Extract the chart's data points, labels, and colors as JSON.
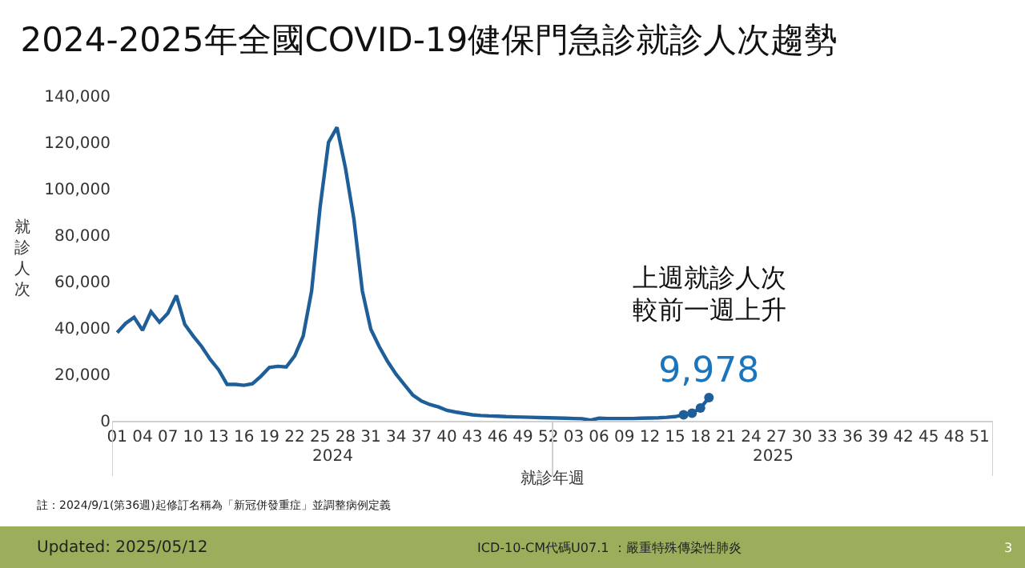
{
  "chart_data": {
    "type": "line",
    "title": "2024-2025年全國COVID-19健保門急診就診人次趨勢",
    "xlabel": "就診年週",
    "ylabel": "就診人次",
    "categories": [
      "01",
      null,
      null,
      "04",
      null,
      null,
      "07",
      null,
      null,
      "10",
      null,
      null,
      "13",
      null,
      null,
      "16",
      null,
      null,
      "19",
      null,
      null,
      "22",
      null,
      null,
      "25",
      null,
      null,
      "28",
      null,
      null,
      "31",
      null,
      null,
      "34",
      null,
      null,
      "37",
      null,
      null,
      "40",
      null,
      null,
      "43",
      null,
      null,
      "46",
      null,
      null,
      "49",
      null,
      null,
      "52",
      null,
      null,
      "03",
      null,
      null,
      "06",
      null,
      null,
      "09",
      null,
      null,
      "12",
      null,
      null,
      "15",
      null,
      null,
      "18",
      null,
      null,
      "21",
      null,
      null,
      "24",
      null,
      null,
      "27",
      null,
      null,
      "30",
      null,
      null,
      "33",
      null,
      null,
      "36",
      null,
      null,
      "39",
      null,
      null,
      "42",
      null,
      null,
      "45",
      null,
      null,
      "48",
      null,
      null,
      "51",
      null
    ],
    "series": [
      {
        "color": "#1f5f99",
        "marker": "none",
        "values": [
          38000,
          42000,
          44600,
          39000,
          47000,
          42500,
          46400,
          54000,
          41500,
          36500,
          32000,
          26500,
          22000,
          15700,
          15700,
          15300,
          16000,
          19200,
          23000,
          23500,
          23200,
          28000,
          36500,
          56000,
          92000,
          120000,
          126500,
          109000,
          87000,
          56000,
          39500,
          32000,
          25500,
          20000,
          15500,
          11000,
          8500,
          7000,
          6000,
          4500,
          3800,
          3200,
          2600,
          2300,
          2100,
          2000,
          1800,
          1700,
          1600,
          1500,
          1400,
          1300,
          1200,
          1100,
          1000,
          900,
          300,
          1100,
          1000,
          1000,
          1000,
          1000,
          1100,
          1200,
          1300,
          1500,
          1800,
          2600,
          null,
          null,
          null,
          null,
          null,
          null,
          null,
          null,
          null,
          null,
          null,
          null,
          null,
          null,
          null,
          null,
          null,
          null,
          null,
          null,
          null,
          null,
          null,
          null,
          null,
          null,
          null,
          null,
          null,
          null,
          null,
          null,
          null,
          null,
          null,
          null
        ]
      },
      {
        "color": "#1f5f99",
        "marker": "circle",
        "values": [
          null,
          null,
          null,
          null,
          null,
          null,
          null,
          null,
          null,
          null,
          null,
          null,
          null,
          null,
          null,
          null,
          null,
          null,
          null,
          null,
          null,
          null,
          null,
          null,
          null,
          null,
          null,
          null,
          null,
          null,
          null,
          null,
          null,
          null,
          null,
          null,
          null,
          null,
          null,
          null,
          null,
          null,
          null,
          null,
          null,
          null,
          null,
          null,
          null,
          null,
          null,
          null,
          null,
          null,
          null,
          null,
          null,
          null,
          null,
          null,
          null,
          null,
          null,
          null,
          null,
          null,
          null,
          2600,
          3300,
          5500,
          9978,
          null,
          null,
          null,
          null,
          null,
          null,
          null,
          null,
          null,
          null,
          null,
          null,
          null,
          null,
          null,
          null,
          null,
          null,
          null,
          null,
          null,
          null,
          null,
          null,
          null,
          null,
          null,
          null,
          null,
          null,
          null,
          null,
          null
        ],
        "value_labels": [
          null,
          null,
          null,
          null,
          null,
          null,
          null,
          null,
          null,
          null,
          null,
          null,
          null,
          null,
          null,
          null,
          null,
          null,
          null,
          null,
          null,
          null,
          null,
          null,
          null,
          null,
          null,
          null,
          null,
          null,
          null,
          null,
          null,
          null,
          null,
          null,
          null,
          null,
          null,
          null,
          null,
          null,
          null,
          null,
          null,
          null,
          null,
          null,
          null,
          null,
          null,
          null,
          null,
          null,
          null,
          null,
          null,
          null,
          null,
          null,
          null,
          null,
          null,
          null,
          null,
          null,
          null,
          null,
          null,
          null,
          "9,978",
          null,
          null,
          null,
          null,
          null,
          null,
          null,
          null,
          null,
          null,
          null,
          null,
          null,
          null,
          null,
          null,
          null,
          null,
          null,
          null,
          null,
          null,
          null,
          null,
          null,
          null,
          null,
          null,
          null,
          null,
          null,
          null,
          null
        ]
      }
    ],
    "ylim": [
      0,
      140000
    ],
    "yticks": [
      0,
      {
        "value": 20000,
        "label": "20,000"
      },
      {
        "value": 40000,
        "label": "40,000"
      },
      {
        "value": 60000,
        "label": "60,000"
      },
      {
        "value": 80000,
        "label": "80,000"
      },
      {
        "value": 100000,
        "label": "100,000"
      },
      {
        "value": 120000,
        "label": "120,000"
      },
      {
        "value": 140000,
        "label": "140,000"
      }
    ],
    "line_style": "solid",
    "annotations": [
      "2024",
      "2025",
      "上週就診人次",
      "較前一週上升",
      "註：2024/9/1(第36週)起修訂名稱為「新冠併發重症」並調整病例定義",
      "Updated: 2025/05/12",
      "ICD-10-CM代碼U07.1 ：嚴重特殊傳染性肺炎",
      "3"
    ]
  }
}
